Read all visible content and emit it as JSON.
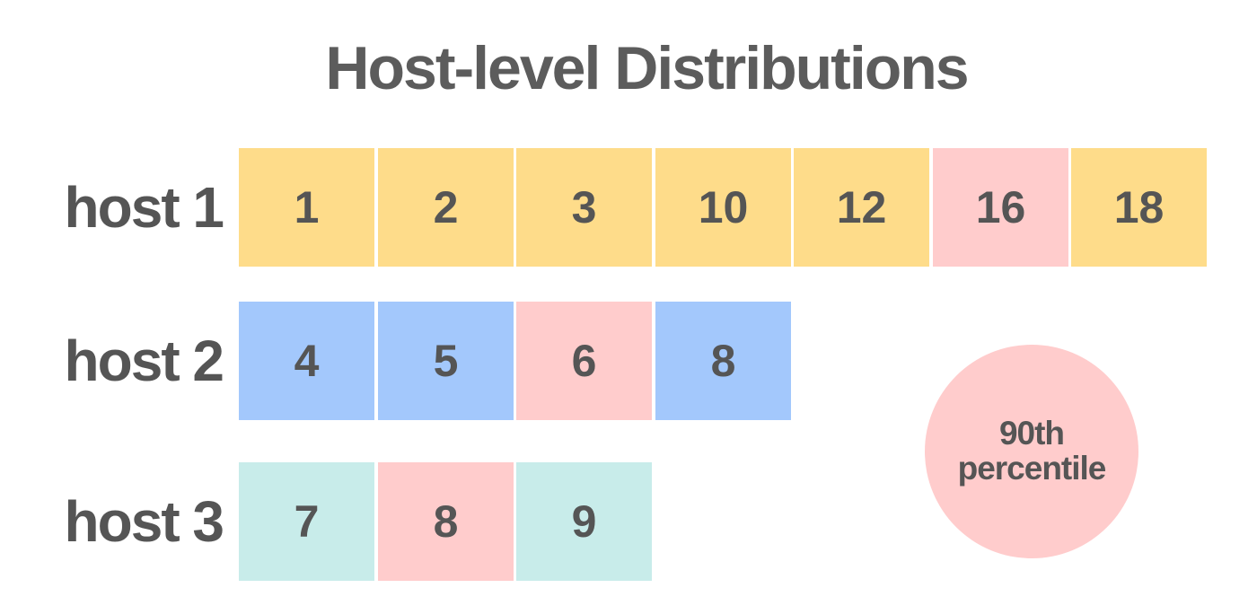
{
  "title": "Host-level Distributions",
  "colors": {
    "host1": "#fedc8a",
    "host2": "#a3c8fc",
    "host3": "#c8ecea",
    "percentile": "#ffcccc"
  },
  "hosts": [
    {
      "label": "host 1",
      "color_key": "host1",
      "values": [
        "1",
        "2",
        "3",
        "10",
        "12",
        "16",
        "18"
      ],
      "highlight_index": 5
    },
    {
      "label": "host 2",
      "color_key": "host2",
      "values": [
        "4",
        "5",
        "6",
        "8"
      ],
      "highlight_index": 2
    },
    {
      "label": "host 3",
      "color_key": "host3",
      "values": [
        "7",
        "8",
        "9"
      ],
      "highlight_index": 1
    }
  ],
  "legend": {
    "line1": "90th",
    "line2": "percentile"
  }
}
